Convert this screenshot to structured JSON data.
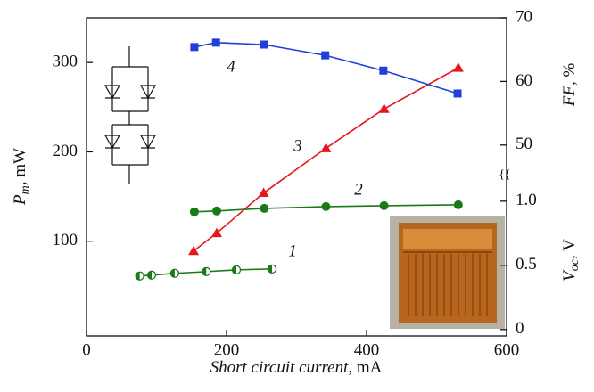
{
  "chart_data": {
    "type": "line",
    "xlabel": {
      "italic": "Short circuit current",
      "unit": ", mA"
    },
    "ylabel": {
      "symbol": "P",
      "sub": "m",
      "unit": ", mW"
    },
    "y2label": {
      "symbol": "FF",
      "unit": ", %"
    },
    "y3label": {
      "symbol": "V",
      "sub": "oc",
      "unit": ", V"
    },
    "xlim": [
      0,
      600
    ],
    "xticks": [
      0,
      200,
      400,
      600
    ],
    "ylim": [
      -6,
      350
    ],
    "yticks": [
      100,
      200,
      300
    ],
    "y2lim": [
      20,
      70
    ],
    "y2ticks": [
      50,
      60,
      70
    ],
    "y3lim": [
      -0.05,
      2.43
    ],
    "y3ticks": [
      0,
      0.5,
      {
        "value": 1,
        "label": "1.0"
      }
    ],
    "series": [
      {
        "name": "1",
        "color": "#1a7a1a",
        "marker": "half-circle",
        "axis": "y3",
        "x": [
          76,
          93,
          126,
          171,
          214,
          265
        ],
        "values": [
          0.417,
          0.424,
          0.438,
          0.451,
          0.465,
          0.472
        ]
      },
      {
        "name": "2",
        "color": "#1a7a1a",
        "marker": "circle",
        "axis": "y3",
        "x": [
          154,
          186,
          254,
          342,
          425,
          531
        ],
        "values": [
          0.917,
          0.924,
          0.944,
          0.958,
          0.965,
          0.972
        ]
      },
      {
        "name": "3",
        "color": "#e8141e",
        "marker": "triangle",
        "axis": "y",
        "x": [
          153,
          186,
          253,
          342,
          425,
          531
        ],
        "values": [
          89,
          109,
          154,
          204,
          248,
          294
        ]
      },
      {
        "name": "4",
        "color": "#1f3fd8",
        "marker": "square",
        "axis": "y2",
        "x": [
          154,
          185,
          253,
          341,
          424,
          530
        ],
        "values": [
          65.4,
          66.1,
          65.8,
          64.1,
          61.7,
          58.1
        ]
      }
    ]
  }
}
